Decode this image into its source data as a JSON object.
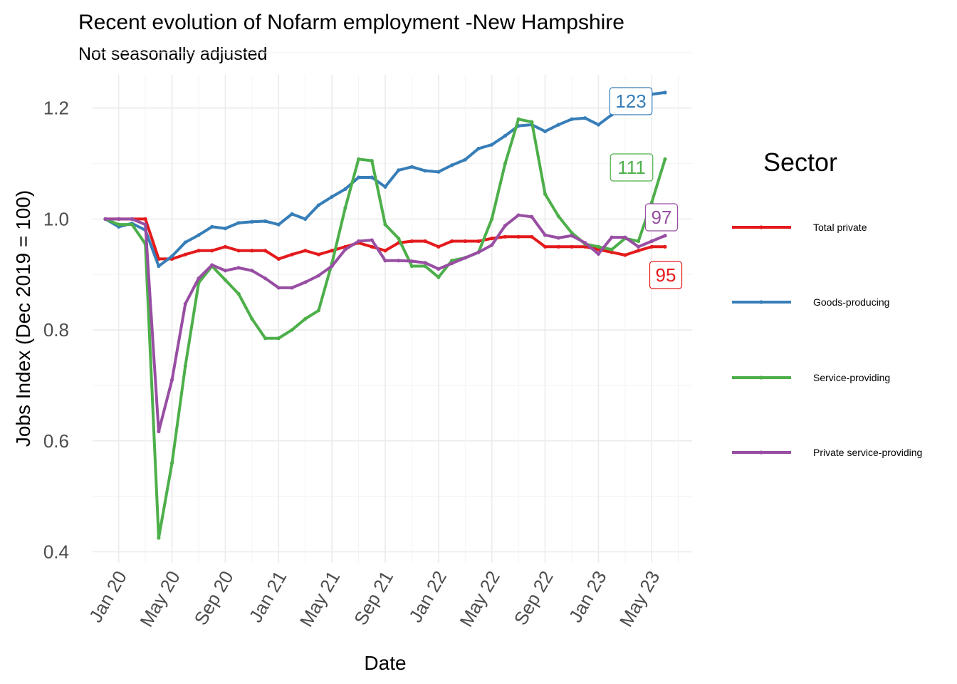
{
  "chart_data": {
    "type": "line",
    "title": "Recent evolution of Nofarm employment -New Hampshire",
    "subtitle": "Not seasonally adjusted",
    "xlabel": "Date",
    "ylabel": "Jobs Index (Dec 2019 = 100)",
    "ylim": [
      0.38,
      1.26
    ],
    "y_ticks": [
      0.4,
      0.6,
      0.8,
      1.0,
      1.2
    ],
    "y_tick_labels": [
      "0.4",
      "0.6",
      "0.8",
      "1.0",
      "1.2"
    ],
    "x_ticks": [
      "Jan 20",
      "May 20",
      "Sep 20",
      "Jan 21",
      "May 21",
      "Sep 21",
      "Jan 22",
      "May 22",
      "Sep 22",
      "Jan 23",
      "May 23"
    ],
    "x_start": "2019-12",
    "x_end": "2023-06",
    "grid": true,
    "legend_title": "Sector",
    "legend_position": "right",
    "x": [
      "2019-12",
      "2020-01",
      "2020-02",
      "2020-03",
      "2020-04",
      "2020-05",
      "2020-06",
      "2020-07",
      "2020-08",
      "2020-09",
      "2020-10",
      "2020-11",
      "2020-12",
      "2021-01",
      "2021-02",
      "2021-03",
      "2021-04",
      "2021-05",
      "2021-06",
      "2021-07",
      "2021-08",
      "2021-09",
      "2021-10",
      "2021-11",
      "2021-12",
      "2022-01",
      "2022-02",
      "2022-03",
      "2022-04",
      "2022-05",
      "2022-06",
      "2022-07",
      "2022-08",
      "2022-09",
      "2022-10",
      "2022-11",
      "2022-12",
      "2023-01",
      "2023-02",
      "2023-03",
      "2023-04",
      "2023-05",
      "2023-06"
    ],
    "series": [
      {
        "name": "Total private",
        "color": "#E41A1C",
        "end_label": "95",
        "values": [
          1.0,
          1.0,
          1.0,
          1.0,
          0.928,
          0.928,
          0.936,
          0.943,
          0.943,
          0.95,
          0.943,
          0.943,
          0.943,
          0.928,
          0.936,
          0.943,
          0.936,
          0.943,
          0.95,
          0.957,
          0.95,
          0.943,
          0.957,
          0.96,
          0.96,
          0.95,
          0.96,
          0.96,
          0.96,
          0.965,
          0.968,
          0.968,
          0.968,
          0.95,
          0.95,
          0.95,
          0.95,
          0.945,
          0.94,
          0.935,
          0.943,
          0.95,
          0.95
        ]
      },
      {
        "name": "Goods-producing",
        "color": "#377EB8",
        "end_label": "123",
        "values": [
          1.0,
          0.986,
          0.992,
          0.98,
          0.915,
          0.933,
          0.958,
          0.971,
          0.986,
          0.983,
          0.993,
          0.995,
          0.996,
          0.99,
          1.009,
          1.0,
          1.025,
          1.04,
          1.054,
          1.075,
          1.075,
          1.058,
          1.088,
          1.094,
          1.087,
          1.085,
          1.097,
          1.107,
          1.127,
          1.134,
          1.15,
          1.168,
          1.17,
          1.158,
          1.17,
          1.18,
          1.182,
          1.17,
          1.188,
          1.205,
          1.215,
          1.225,
          1.228
        ]
      },
      {
        "name": "Service-providing",
        "color": "#4DAF4A",
        "end_label": "111",
        "values": [
          1.0,
          0.99,
          0.99,
          0.955,
          0.425,
          0.56,
          0.735,
          0.885,
          0.915,
          0.89,
          0.865,
          0.82,
          0.785,
          0.785,
          0.8,
          0.82,
          0.835,
          0.92,
          1.02,
          1.108,
          1.105,
          0.99,
          0.965,
          0.915,
          0.915,
          0.895,
          0.925,
          0.93,
          0.94,
          1.0,
          1.1,
          1.18,
          1.175,
          1.045,
          1.005,
          0.975,
          0.955,
          0.95,
          0.945,
          0.965,
          0.96,
          1.03,
          1.108
        ]
      },
      {
        "name": "Private service-providing",
        "color": "#984EA3",
        "end_label": "97",
        "values": [
          1.0,
          1.0,
          1.0,
          0.99,
          0.617,
          0.71,
          0.847,
          0.893,
          0.917,
          0.907,
          0.912,
          0.907,
          0.893,
          0.876,
          0.876,
          0.886,
          0.898,
          0.915,
          0.945,
          0.96,
          0.962,
          0.925,
          0.925,
          0.924,
          0.921,
          0.91,
          0.92,
          0.93,
          0.94,
          0.953,
          0.988,
          1.007,
          1.004,
          0.971,
          0.966,
          0.97,
          0.957,
          0.937,
          0.967,
          0.967,
          0.95,
          0.96,
          0.97
        ]
      }
    ]
  }
}
